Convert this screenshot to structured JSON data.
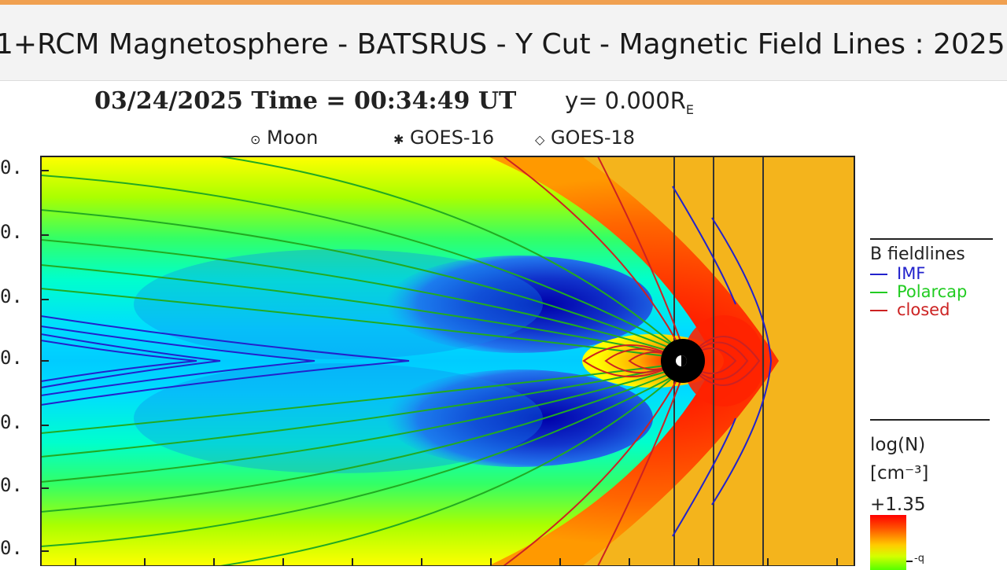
{
  "window": {
    "title": "1+RCM Magnetosphere - BATSRUS - Y Cut - Magnetic Field Lines : 2025"
  },
  "plot": {
    "header": {
      "date": "03/24/2025",
      "time_label": "Time",
      "equals": "=",
      "time": "00:34:49",
      "timezone": "UT",
      "y_cut_label": "y= 0.000R",
      "y_cut_subscript": "E"
    },
    "markers": [
      {
        "glyph": "⊙",
        "label": "Moon"
      },
      {
        "glyph": "✱",
        "label": "GOES-16"
      },
      {
        "glyph": "◇",
        "label": "GOES-18"
      }
    ],
    "y_tick_labels": [
      "0.",
      "0.",
      "0.",
      "0.",
      "0.",
      "0.",
      "0."
    ],
    "fieldlines_legend": {
      "title": "B  fieldlines",
      "items": [
        {
          "label": "IMF",
          "color": "#2222cc"
        },
        {
          "label": "Polarcap",
          "color": "#22cc22"
        },
        {
          "label": "closed",
          "color": "#cc2222"
        }
      ]
    },
    "colorbar": {
      "label_line1": "log(N)",
      "label_line2": "[cm⁻³]",
      "max_label": "+1.35",
      "tick_label": "-q"
    },
    "colors": {
      "imf": "#2222cc",
      "polarcap": "#22cc22",
      "closed": "#cc2222",
      "solar_wind": "#f4b41c",
      "earth": "#000000"
    }
  }
}
